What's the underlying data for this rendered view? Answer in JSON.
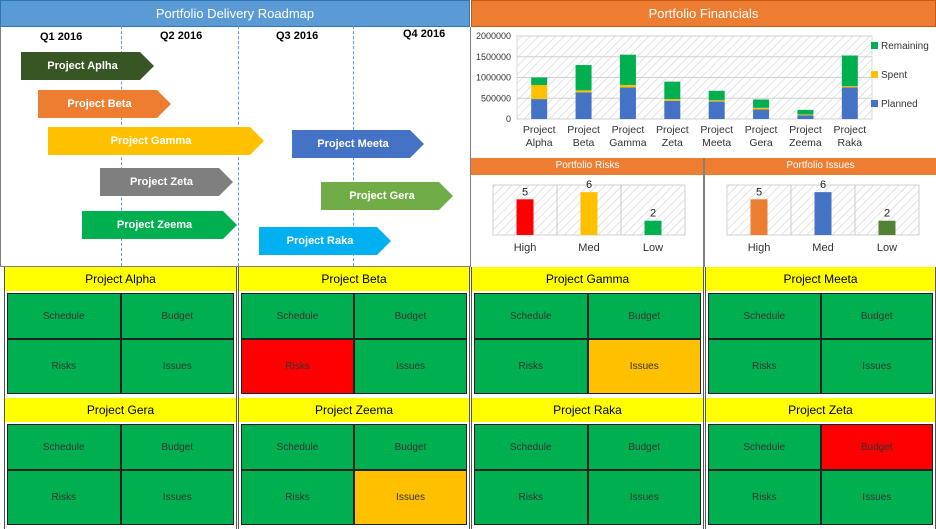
{
  "roadmap": {
    "title": "Portfolio Delivery Roadmap",
    "quarters": [
      "Q1 2016",
      "Q2 2016",
      "Q3 2016",
      "Q4 2016"
    ],
    "projects": [
      {
        "label": "Project Aplha",
        "color": "#375623"
      },
      {
        "label": "Project Beta",
        "color": "#ed7d31"
      },
      {
        "label": "Project Gamma",
        "color": "#ffc000"
      },
      {
        "label": "Project Zeta",
        "color": "#7f7f7f"
      },
      {
        "label": "Project Zeema",
        "color": "#00b050"
      },
      {
        "label": "Project Meeta",
        "color": "#4472c4"
      },
      {
        "label": "Project Gera",
        "color": "#70ad47"
      },
      {
        "label": "Project Raka",
        "color": "#00b0f0"
      }
    ]
  },
  "financials": {
    "title": "Portfolio Financials",
    "chart_data": {
      "type": "bar",
      "stacked": true,
      "categories": [
        "Project Alpha",
        "Project Beta",
        "Project Gamma",
        "Project Zeta",
        "Project Meeta",
        "Project Gera",
        "Project Zeema",
        "Project Raka"
      ],
      "series": [
        {
          "name": "Planned",
          "color": "#4472c4",
          "values": [
            480000,
            640000,
            760000,
            440000,
            420000,
            230000,
            90000,
            760000
          ]
        },
        {
          "name": "Spent",
          "color": "#ffc000",
          "values": [
            340000,
            50000,
            60000,
            40000,
            30000,
            40000,
            20000,
            30000
          ]
        },
        {
          "name": "Remaining",
          "color": "#00b050",
          "values": [
            180000,
            610000,
            730000,
            420000,
            230000,
            200000,
            110000,
            740000
          ]
        }
      ],
      "legend_order": [
        "Remaining",
        "Spent",
        "Planned"
      ],
      "y_ticks": [
        "0",
        "500000",
        "1000000",
        "1500000",
        "2000000"
      ],
      "ylim": [
        0,
        2000000
      ],
      "legend_position": "right",
      "grid": true
    }
  },
  "risks": {
    "title": "Portfolio Risks",
    "chart_data": {
      "type": "bar",
      "categories": [
        "High",
        "Med",
        "Low"
      ],
      "values": [
        5,
        6,
        2
      ],
      "colors": [
        "#ff0000",
        "#ffc000",
        "#00b050"
      ],
      "ylim": [
        0,
        7
      ]
    }
  },
  "issues": {
    "title": "Portfolio Issues",
    "chart_data": {
      "type": "bar",
      "categories": [
        "High",
        "Med",
        "Low"
      ],
      "values": [
        5,
        6,
        2
      ],
      "colors": [
        "#ed7d31",
        "#4472c4",
        "#548235"
      ],
      "ylim": [
        0,
        7
      ]
    }
  },
  "status_colors": {
    "green": "#00b050",
    "red": "#ff0000",
    "amber": "#ffc000"
  },
  "status_cards": [
    {
      "title": "Project Alpha",
      "cells": [
        {
          "label": "Schedule",
          "status": "green"
        },
        {
          "label": "Budget",
          "status": "green"
        },
        {
          "label": "Risks",
          "status": "green"
        },
        {
          "label": "Issues",
          "status": "green"
        }
      ]
    },
    {
      "title": "Project Beta",
      "cells": [
        {
          "label": "Schedule",
          "status": "green"
        },
        {
          "label": "Budget",
          "status": "green"
        },
        {
          "label": "Risks",
          "status": "red"
        },
        {
          "label": "Issues",
          "status": "green"
        }
      ]
    },
    {
      "title": "Project Gamma",
      "cells": [
        {
          "label": "Schedule",
          "status": "green"
        },
        {
          "label": "Budget",
          "status": "green"
        },
        {
          "label": "Risks",
          "status": "green"
        },
        {
          "label": "Issues",
          "status": "amber"
        }
      ]
    },
    {
      "title": "Project Meeta",
      "cells": [
        {
          "label": "Schedule",
          "status": "green"
        },
        {
          "label": "Budget",
          "status": "green"
        },
        {
          "label": "Risks",
          "status": "green"
        },
        {
          "label": "Issues",
          "status": "green"
        }
      ]
    },
    {
      "title": "Project Gera",
      "cells": [
        {
          "label": "Schedule",
          "status": "green"
        },
        {
          "label": "Budget",
          "status": "green"
        },
        {
          "label": "Risks",
          "status": "green"
        },
        {
          "label": "Issues",
          "status": "green"
        }
      ]
    },
    {
      "title": "Project Zeema",
      "cells": [
        {
          "label": "Schedule",
          "status": "green"
        },
        {
          "label": "Budget",
          "status": "green"
        },
        {
          "label": "Risks",
          "status": "green"
        },
        {
          "label": "Issues",
          "status": "amber"
        }
      ]
    },
    {
      "title": "Project Raka",
      "cells": [
        {
          "label": "Schedule",
          "status": "green"
        },
        {
          "label": "Budget",
          "status": "green"
        },
        {
          "label": "Risks",
          "status": "green"
        },
        {
          "label": "Issues",
          "status": "green"
        }
      ]
    },
    {
      "title": "Project Zeta",
      "cells": [
        {
          "label": "Schedule",
          "status": "green"
        },
        {
          "label": "Budget",
          "status": "red"
        },
        {
          "label": "Risks",
          "status": "green"
        },
        {
          "label": "Issues",
          "status": "green"
        }
      ]
    }
  ]
}
